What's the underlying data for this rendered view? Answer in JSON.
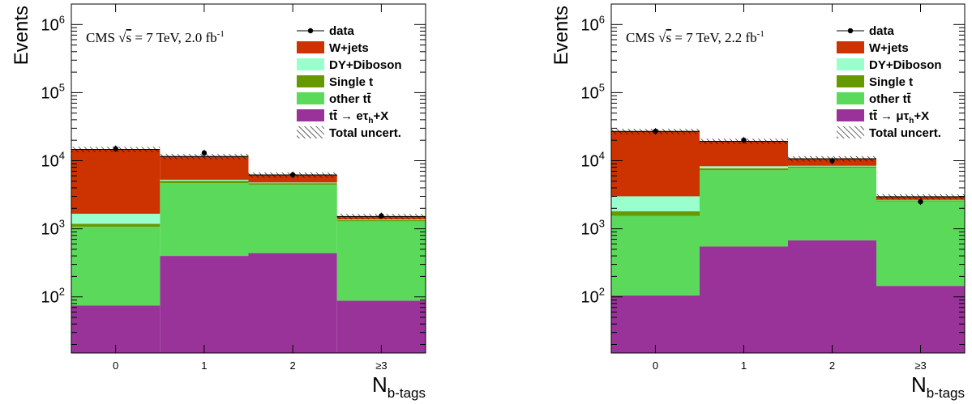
{
  "chart_data": [
    {
      "type": "bar",
      "stacked": true,
      "yscale": "log",
      "ylim": [
        15,
        2000000
      ],
      "ylabel": "Events",
      "xlabel": "N_b-tags",
      "xlabel_main": "N",
      "xlabel_sub": "b-tags",
      "categories": [
        "0",
        "1",
        "2",
        "≥3"
      ],
      "annotation": {
        "prefix": "CMS ",
        "sqrt": "√",
        "s": "s",
        "mid": " = 7 TeV,  2.0 fb",
        "sup": "-1"
      },
      "legend_position": "top-right",
      "legend": [
        {
          "label": "data",
          "kind": "marker"
        },
        {
          "label": "W+jets",
          "kind": "fill",
          "color": "#cc3300"
        },
        {
          "label": "DY+Diboson",
          "kind": "fill",
          "color": "#99ffcc"
        },
        {
          "label": "Single t",
          "kind": "fill",
          "color": "#669900"
        },
        {
          "label": "other tt̄",
          "kind": "fill",
          "color": "#5bd95b"
        },
        {
          "label": "tt̄ → eτ",
          "sub": "h",
          "tail": "+X",
          "kind": "fill",
          "color": "#993399"
        },
        {
          "label": "Total uncert.",
          "kind": "hatch"
        }
      ],
      "series": [
        {
          "name": "tt̄ → eτh+X",
          "color": "#993399",
          "values": [
            75,
            400,
            440,
            88
          ]
        },
        {
          "name": "other tt̄",
          "color": "#5bd95b",
          "values": [
            1000,
            4300,
            4000,
            1200
          ]
        },
        {
          "name": "Single t",
          "color": "#669900",
          "values": [
            110,
            350,
            250,
            60
          ]
        },
        {
          "name": "DY+Diboson",
          "color": "#99ffcc",
          "values": [
            480,
            200,
            100,
            30
          ]
        },
        {
          "name": "W+jets",
          "color": "#cc3300",
          "values": [
            13000,
            6300,
            1400,
            140
          ]
        }
      ],
      "data_points": [
        15000,
        13000,
        6200,
        1550
      ],
      "total_uncert_frac": 0.09
    },
    {
      "type": "bar",
      "stacked": true,
      "yscale": "log",
      "ylim": [
        15,
        2000000
      ],
      "ylabel": "Events",
      "xlabel": "N_b-tags",
      "xlabel_main": "N",
      "xlabel_sub": "b-tags",
      "categories": [
        "0",
        "1",
        "2",
        "≥3"
      ],
      "annotation": {
        "prefix": "CMS ",
        "sqrt": "√",
        "s": "s",
        "mid": " = 7 TeV,  2.2 fb",
        "sup": "-1"
      },
      "legend_position": "top-right",
      "legend": [
        {
          "label": "data",
          "kind": "marker"
        },
        {
          "label": "W+jets",
          "kind": "fill",
          "color": "#cc3300"
        },
        {
          "label": "DY+Diboson",
          "kind": "fill",
          "color": "#99ffcc"
        },
        {
          "label": "Single t",
          "kind": "fill",
          "color": "#669900"
        },
        {
          "label": "other tt̄",
          "kind": "fill",
          "color": "#5bd95b"
        },
        {
          "label": "tt̄ → μτ",
          "sub": "h",
          "tail": "+X",
          "kind": "fill",
          "color": "#993399"
        },
        {
          "label": "Total uncert.",
          "kind": "hatch"
        }
      ],
      "series": [
        {
          "name": "tt̄ → μτh+X",
          "color": "#993399",
          "values": [
            105,
            550,
            680,
            145
          ]
        },
        {
          "name": "other tt̄",
          "color": "#5bd95b",
          "values": [
            1450,
            6700,
            7200,
            2400
          ]
        },
        {
          "name": "Single t",
          "color": "#669900",
          "values": [
            250,
            500,
            350,
            70
          ]
        },
        {
          "name": "DY+Diboson",
          "color": "#99ffcc",
          "values": [
            1200,
            550,
            200,
            50
          ]
        },
        {
          "name": "W+jets",
          "color": "#cc3300",
          "values": [
            24000,
            11000,
            2300,
            300
          ]
        }
      ],
      "data_points": [
        27000,
        20000,
        10000,
        2500
      ],
      "total_uncert_frac": 0.09
    }
  ]
}
